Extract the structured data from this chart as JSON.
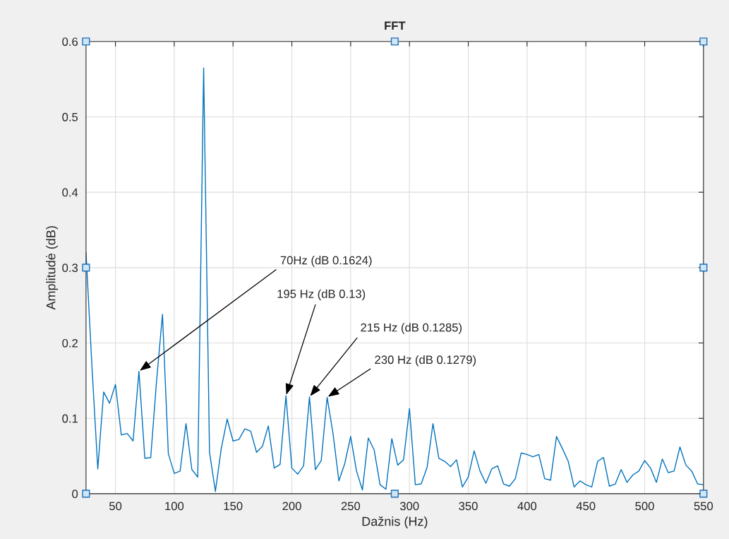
{
  "chart_data": {
    "type": "line",
    "title": "FFT",
    "xlabel": "Dažnis (Hz)",
    "ylabel": "Amplitudė (dB)",
    "x": [
      25,
      30,
      35,
      40,
      45,
      50,
      55,
      60,
      65,
      70,
      75,
      80,
      85,
      90,
      95,
      100,
      105,
      110,
      115,
      120,
      125,
      130,
      135,
      140,
      145,
      150,
      155,
      160,
      165,
      170,
      175,
      180,
      185,
      190,
      195,
      200,
      205,
      210,
      215,
      220,
      225,
      230,
      235,
      240,
      245,
      250,
      255,
      260,
      265,
      270,
      275,
      280,
      285,
      290,
      295,
      300,
      305,
      310,
      315,
      320,
      325,
      330,
      335,
      340,
      345,
      350,
      355,
      360,
      365,
      370,
      375,
      380,
      385,
      390,
      395,
      400,
      405,
      410,
      415,
      420,
      425,
      430,
      435,
      440,
      445,
      450,
      455,
      460,
      465,
      470,
      475,
      480,
      485,
      490,
      495,
      500,
      505,
      510,
      515,
      520,
      525,
      530,
      535,
      540,
      545,
      550
    ],
    "series": [
      {
        "color": "#0072bd",
        "values": [
          0.32,
          0.17,
          0.033,
          0.135,
          0.12,
          0.145,
          0.078,
          0.08,
          0.07,
          0.1624,
          0.047,
          0.048,
          0.15,
          0.238,
          0.053,
          0.027,
          0.03,
          0.093,
          0.032,
          0.022,
          0.565,
          0.055,
          0.003,
          0.06,
          0.099,
          0.07,
          0.072,
          0.086,
          0.083,
          0.055,
          0.063,
          0.09,
          0.034,
          0.039,
          0.13,
          0.034,
          0.026,
          0.037,
          0.1285,
          0.032,
          0.044,
          0.1279,
          0.08,
          0.017,
          0.04,
          0.076,
          0.03,
          0.005,
          0.074,
          0.058,
          0.012,
          0.006,
          0.073,
          0.038,
          0.045,
          0.113,
          0.012,
          0.013,
          0.035,
          0.093,
          0.047,
          0.043,
          0.036,
          0.045,
          0.009,
          0.022,
          0.057,
          0.03,
          0.014,
          0.033,
          0.037,
          0.013,
          0.01,
          0.02,
          0.054,
          0.052,
          0.049,
          0.052,
          0.02,
          0.018,
          0.076,
          0.06,
          0.043,
          0.009,
          0.017,
          0.012,
          0.009,
          0.043,
          0.048,
          0.01,
          0.013,
          0.032,
          0.015,
          0.025,
          0.03,
          0.044,
          0.034,
          0.015,
          0.046,
          0.028,
          0.03,
          0.062,
          0.038,
          0.03,
          0.013,
          0.012
        ]
      }
    ],
    "xlim": [
      25,
      550
    ],
    "xticks": [
      50,
      100,
      150,
      200,
      250,
      300,
      350,
      400,
      450,
      500,
      550
    ],
    "ylim": [
      0,
      0.6
    ],
    "yticks": [
      0,
      0.1,
      0.2,
      0.3,
      0.4,
      0.5,
      0.6
    ],
    "grid": true,
    "legend": false,
    "annotations": [
      {
        "text": "70Hz (dB 0.1624)",
        "x": 70,
        "y": 0.1624
      },
      {
        "text": "195 Hz (dB 0.13)",
        "x": 195,
        "y": 0.13
      },
      {
        "text": "215 Hz (dB 0.1285)",
        "x": 215,
        "y": 0.1285
      },
      {
        "text": "230 Hz (dB 0.1279)",
        "x": 230,
        "y": 0.1279
      }
    ]
  }
}
